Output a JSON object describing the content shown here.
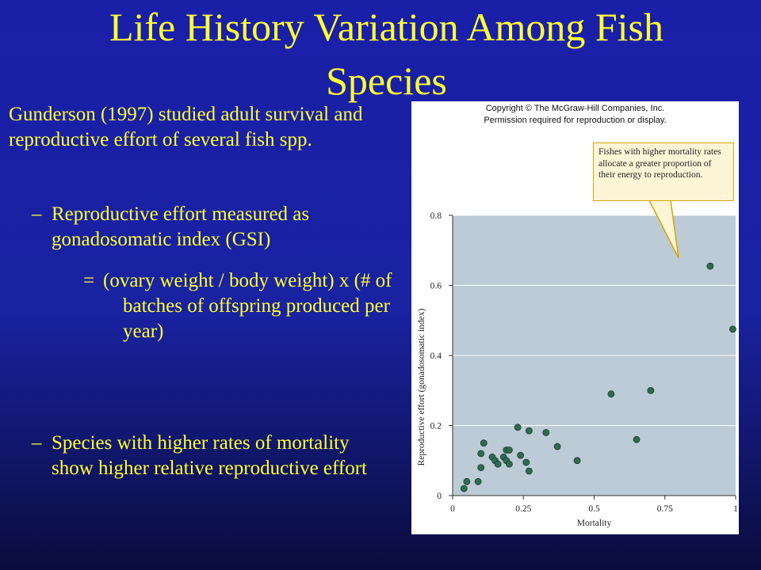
{
  "slide": {
    "title_line1": "Life History Variation Among Fish",
    "title_line2": "Species",
    "bullet_main": "Gunderson (1997) studied adult survival and reproductive effort of several fish spp.",
    "sub1_dash": "–",
    "sub1_text": "Reproductive effort measured as gonadosomatic index (GSI)",
    "sub2_eq": "=",
    "sub2_text": "(ovary weight / body weight) x (# of batches of offspring produced per year)",
    "sub3_dash": "–",
    "sub3_text": "Species with higher rates of mortality  show higher relative reproductive effort",
    "text_color": "#ffff33",
    "background_color": "#1a1fa8"
  },
  "figure": {
    "copyright_line1": "Copyright © The McGraw-Hill Companies, Inc.",
    "copyright_line2": "Permission required for reproduction or display.",
    "callout_text": "Fishes with higher mortality rates allocate a greater proportion of their energy to reproduction."
  },
  "chart_data": {
    "type": "scatter",
    "xlabel": "Mortality",
    "ylabel": "Reproductive effort (gonadosomatic index)",
    "xlim": [
      0,
      1
    ],
    "ylim": [
      0,
      0.8
    ],
    "xticks": [
      "0",
      "0.25",
      "0.5",
      "0.75",
      "1"
    ],
    "yticks": [
      "0",
      "0.2",
      "0.4",
      "0.6",
      "0.8"
    ],
    "grid": true,
    "plot_background": "#bccbd6",
    "point_color": "#2e6b4f",
    "x": [
      0.04,
      0.05,
      0.09,
      0.1,
      0.1,
      0.11,
      0.14,
      0.15,
      0.16,
      0.18,
      0.19,
      0.19,
      0.2,
      0.2,
      0.23,
      0.24,
      0.26,
      0.27,
      0.27,
      0.33,
      0.37,
      0.44,
      0.56,
      0.65,
      0.7,
      0.91,
      0.99
    ],
    "y": [
      0.02,
      0.04,
      0.04,
      0.12,
      0.08,
      0.15,
      0.11,
      0.1,
      0.09,
      0.11,
      0.13,
      0.1,
      0.09,
      0.13,
      0.195,
      0.115,
      0.095,
      0.185,
      0.07,
      0.18,
      0.14,
      0.1,
      0.29,
      0.16,
      0.3,
      0.655,
      0.475
    ]
  }
}
